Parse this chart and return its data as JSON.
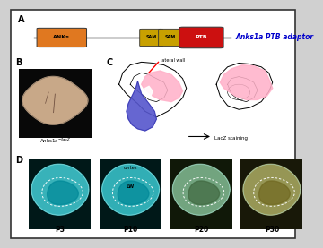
{
  "title_A": "A",
  "title_B": "B",
  "title_C": "C",
  "title_D": "D",
  "label_anks1a": "Anks1a PTB adaptor",
  "label_anks1a_mouse": "Anks1a$^{-/lacZ}$",
  "label_lacZ": "LacZ staining",
  "label_lateral_wall": "lateral wall",
  "label_cortex": "cortex",
  "label_LW": "LW",
  "domain_labels": [
    "ANKs",
    "SAM",
    "SAM",
    "PTB"
  ],
  "domain_colors": [
    "#E07820",
    "#C8A000",
    "#C8A000",
    "#CC1010"
  ],
  "timepoints": [
    "P3",
    "P10",
    "P20",
    "P30"
  ],
  "bg_color": "#d0d0d0",
  "panel_bg": "#ffffff",
  "brain_colors_D": [
    "#40C8D0",
    "#38C4CC",
    "#80B890",
    "#A8A860"
  ],
  "brain_bg_D": [
    "#001818",
    "#001818",
    "#101808",
    "#181808"
  ],
  "border_color": "#444444"
}
